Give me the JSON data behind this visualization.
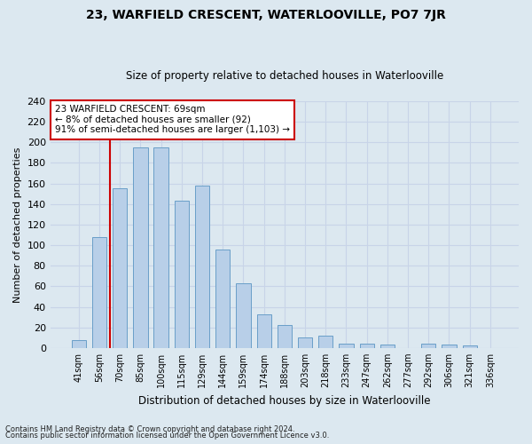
{
  "title": "23, WARFIELD CRESCENT, WATERLOOVILLE, PO7 7JR",
  "subtitle": "Size of property relative to detached houses in Waterlooville",
  "xlabel": "Distribution of detached houses by size in Waterlooville",
  "ylabel": "Number of detached properties",
  "categories": [
    "41sqm",
    "56sqm",
    "70sqm",
    "85sqm",
    "100sqm",
    "115sqm",
    "129sqm",
    "144sqm",
    "159sqm",
    "174sqm",
    "188sqm",
    "203sqm",
    "218sqm",
    "233sqm",
    "247sqm",
    "262sqm",
    "277sqm",
    "292sqm",
    "306sqm",
    "321sqm",
    "336sqm"
  ],
  "values": [
    8,
    108,
    155,
    195,
    195,
    143,
    158,
    96,
    63,
    33,
    22,
    10,
    12,
    4,
    4,
    3,
    0,
    4,
    3,
    2,
    0
  ],
  "bar_color": "#b8cfe8",
  "bar_edge_color": "#6a9fc8",
  "highlight_color": "#cc0000",
  "annotation_line1": "23 WARFIELD CRESCENT: 69sqm",
  "annotation_line2": "← 8% of detached houses are smaller (92)",
  "annotation_line3": "91% of semi-detached houses are larger (1,103) →",
  "annotation_box_color": "#ffffff",
  "annotation_box_edge": "#cc0000",
  "ylim": [
    0,
    240
  ],
  "yticks": [
    0,
    20,
    40,
    60,
    80,
    100,
    120,
    140,
    160,
    180,
    200,
    220,
    240
  ],
  "grid_color": "#c8d4e8",
  "background_color": "#dce8f0",
  "footer1": "Contains HM Land Registry data © Crown copyright and database right 2024.",
  "footer2": "Contains public sector information licensed under the Open Government Licence v3.0."
}
